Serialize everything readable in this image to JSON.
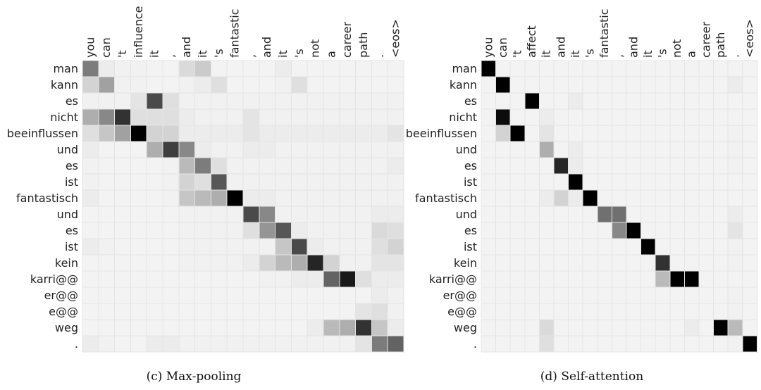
{
  "chart_data": [
    {
      "type": "heatmap",
      "title": "",
      "caption": "(c) Max-pooling",
      "x_labels": [
        "you",
        "can",
        "'t",
        "influence",
        "it",
        ",",
        "and",
        "it",
        "'s",
        "fantastic",
        ",",
        "and",
        "it",
        "'s",
        "not",
        "a",
        "career",
        "path",
        ".",
        "<eos>"
      ],
      "y_labels": [
        "man",
        "kann",
        "es",
        "nicht",
        "beeinflussen",
        "und",
        "es",
        "ist",
        "fantastisch",
        "und",
        "es",
        "ist",
        "kein",
        "karri@@",
        "er@@",
        "e@@",
        "weg",
        "."
      ],
      "value_range": [
        0,
        1
      ],
      "values": [
        [
          0.5,
          0.05,
          0.03,
          0.03,
          0.02,
          0.02,
          0.12,
          0.18,
          0.02,
          0.02,
          0.02,
          0.02,
          0.05,
          0.02,
          0.02,
          0.02,
          0.02,
          0.02,
          0.02,
          0.02
        ],
        [
          0.15,
          0.35,
          0.03,
          0.03,
          0.02,
          0.02,
          0.03,
          0.05,
          0.1,
          0.02,
          0.02,
          0.02,
          0.03,
          0.1,
          0.02,
          0.02,
          0.02,
          0.02,
          0.02,
          0.02
        ],
        [
          0.03,
          0.03,
          0.03,
          0.08,
          0.7,
          0.1,
          0.03,
          0.03,
          0.03,
          0.03,
          0.03,
          0.03,
          0.03,
          0.03,
          0.03,
          0.03,
          0.03,
          0.03,
          0.03,
          0.03
        ],
        [
          0.3,
          0.45,
          0.8,
          0.1,
          0.1,
          0.1,
          0.05,
          0.03,
          0.03,
          0.03,
          0.08,
          0.03,
          0.03,
          0.03,
          0.03,
          0.03,
          0.03,
          0.03,
          0.03,
          0.03
        ],
        [
          0.1,
          0.2,
          0.35,
          1.0,
          0.15,
          0.15,
          0.05,
          0.05,
          0.05,
          0.05,
          0.08,
          0.05,
          0.05,
          0.05,
          0.05,
          0.05,
          0.05,
          0.05,
          0.05,
          0.08
        ],
        [
          0.05,
          0.02,
          0.02,
          0.02,
          0.3,
          0.75,
          0.45,
          0.05,
          0.03,
          0.03,
          0.05,
          0.05,
          0.03,
          0.03,
          0.03,
          0.03,
          0.03,
          0.03,
          0.03,
          0.03
        ],
        [
          0.03,
          0.02,
          0.02,
          0.02,
          0.02,
          0.03,
          0.25,
          0.5,
          0.1,
          0.03,
          0.03,
          0.03,
          0.03,
          0.03,
          0.03,
          0.03,
          0.03,
          0.03,
          0.03,
          0.05
        ],
        [
          0.03,
          0.02,
          0.02,
          0.02,
          0.02,
          0.03,
          0.15,
          0.1,
          0.65,
          0.03,
          0.03,
          0.03,
          0.03,
          0.03,
          0.03,
          0.03,
          0.03,
          0.03,
          0.03,
          0.03
        ],
        [
          0.05,
          0.02,
          0.02,
          0.02,
          0.02,
          0.03,
          0.2,
          0.25,
          0.3,
          1.0,
          0.05,
          0.05,
          0.03,
          0.03,
          0.03,
          0.03,
          0.03,
          0.03,
          0.03,
          0.03
        ],
        [
          0.02,
          0.02,
          0.02,
          0.02,
          0.02,
          0.02,
          0.03,
          0.03,
          0.03,
          0.03,
          0.7,
          0.45,
          0.03,
          0.03,
          0.03,
          0.03,
          0.03,
          0.03,
          0.05,
          0.05
        ],
        [
          0.02,
          0.02,
          0.02,
          0.02,
          0.02,
          0.02,
          0.03,
          0.03,
          0.03,
          0.03,
          0.1,
          0.4,
          0.65,
          0.05,
          0.03,
          0.03,
          0.03,
          0.03,
          0.12,
          0.1
        ],
        [
          0.05,
          0.03,
          0.02,
          0.02,
          0.02,
          0.02,
          0.03,
          0.03,
          0.03,
          0.03,
          0.03,
          0.03,
          0.2,
          0.7,
          0.05,
          0.03,
          0.03,
          0.03,
          0.1,
          0.15
        ],
        [
          0.02,
          0.02,
          0.02,
          0.02,
          0.02,
          0.02,
          0.03,
          0.03,
          0.03,
          0.03,
          0.05,
          0.15,
          0.25,
          0.3,
          0.85,
          0.15,
          0.03,
          0.03,
          0.08,
          0.08
        ],
        [
          0.02,
          0.02,
          0.02,
          0.02,
          0.02,
          0.02,
          0.02,
          0.02,
          0.02,
          0.02,
          0.02,
          0.03,
          0.03,
          0.05,
          0.05,
          0.6,
          0.9,
          0.1,
          0.05,
          0.05
        ],
        [
          0.02,
          0.02,
          0.02,
          0.02,
          0.02,
          0.02,
          0.02,
          0.02,
          0.02,
          0.02,
          0.02,
          0.02,
          0.02,
          0.02,
          0.02,
          0.02,
          0.02,
          0.02,
          0.05,
          0.03
        ],
        [
          0.02,
          0.02,
          0.02,
          0.02,
          0.02,
          0.02,
          0.02,
          0.02,
          0.02,
          0.02,
          0.02,
          0.02,
          0.02,
          0.02,
          0.02,
          0.02,
          0.02,
          0.08,
          0.1,
          0.03
        ],
        [
          0.02,
          0.02,
          0.02,
          0.02,
          0.02,
          0.02,
          0.02,
          0.02,
          0.02,
          0.02,
          0.02,
          0.02,
          0.02,
          0.02,
          0.05,
          0.25,
          0.3,
          0.8,
          0.2,
          0.05
        ],
        [
          0.05,
          0.03,
          0.02,
          0.02,
          0.05,
          0.05,
          0.03,
          0.03,
          0.03,
          0.03,
          0.03,
          0.03,
          0.03,
          0.03,
          0.03,
          0.03,
          0.03,
          0.08,
          0.5,
          0.6
        ]
      ]
    },
    {
      "type": "heatmap",
      "title": "",
      "caption": "(d) Self-attention",
      "x_labels": [
        "you",
        "can",
        "'t",
        "affect",
        "it",
        "and",
        "it",
        "'s",
        "fantastic",
        ",",
        "and",
        "it",
        "'s",
        "not",
        "a",
        "career",
        "path",
        ".",
        "<eos>"
      ],
      "y_labels": [
        "man",
        "kann",
        "es",
        "nicht",
        "beeinflussen",
        "und",
        "es",
        "ist",
        "fantastisch",
        "und",
        "es",
        "ist",
        "kein",
        "karri@@",
        "er@@",
        "e@@",
        "weg",
        "."
      ],
      "value_range": [
        0,
        1
      ],
      "values": [
        [
          1.0,
          0.02,
          0.02,
          0.02,
          0.02,
          0.02,
          0.02,
          0.02,
          0.02,
          0.02,
          0.02,
          0.02,
          0.02,
          0.02,
          0.02,
          0.02,
          0.02,
          0.02,
          0.02
        ],
        [
          0.02,
          1.0,
          0.02,
          0.02,
          0.02,
          0.02,
          0.02,
          0.02,
          0.02,
          0.02,
          0.02,
          0.02,
          0.02,
          0.02,
          0.02,
          0.02,
          0.02,
          0.05,
          0.02
        ],
        [
          0.02,
          0.02,
          0.02,
          1.0,
          0.02,
          0.02,
          0.05,
          0.02,
          0.02,
          0.02,
          0.02,
          0.02,
          0.02,
          0.02,
          0.02,
          0.02,
          0.02,
          0.02,
          0.02
        ],
        [
          0.02,
          0.95,
          0.02,
          0.02,
          0.05,
          0.02,
          0.02,
          0.02,
          0.02,
          0.02,
          0.02,
          0.02,
          0.02,
          0.02,
          0.02,
          0.02,
          0.02,
          0.02,
          0.02
        ],
        [
          0.02,
          0.15,
          1.0,
          0.02,
          0.08,
          0.02,
          0.02,
          0.02,
          0.02,
          0.02,
          0.02,
          0.02,
          0.02,
          0.02,
          0.02,
          0.02,
          0.02,
          0.03,
          0.02
        ],
        [
          0.02,
          0.02,
          0.02,
          0.02,
          0.3,
          0.02,
          0.05,
          0.02,
          0.02,
          0.02,
          0.02,
          0.02,
          0.02,
          0.02,
          0.02,
          0.02,
          0.02,
          0.03,
          0.02
        ],
        [
          0.02,
          0.02,
          0.02,
          0.02,
          0.02,
          0.85,
          0.05,
          0.02,
          0.02,
          0.02,
          0.02,
          0.02,
          0.02,
          0.02,
          0.02,
          0.02,
          0.02,
          0.03,
          0.02
        ],
        [
          0.02,
          0.02,
          0.02,
          0.02,
          0.02,
          0.02,
          1.0,
          0.02,
          0.02,
          0.02,
          0.02,
          0.02,
          0.02,
          0.02,
          0.02,
          0.02,
          0.02,
          0.02,
          0.02
        ],
        [
          0.02,
          0.02,
          0.02,
          0.02,
          0.05,
          0.15,
          0.05,
          1.0,
          0.02,
          0.02,
          0.02,
          0.02,
          0.02,
          0.02,
          0.02,
          0.02,
          0.02,
          0.02,
          0.02
        ],
        [
          0.02,
          0.02,
          0.02,
          0.02,
          0.02,
          0.02,
          0.02,
          0.02,
          0.55,
          0.55,
          0.02,
          0.02,
          0.02,
          0.02,
          0.02,
          0.02,
          0.02,
          0.05,
          0.02
        ],
        [
          0.02,
          0.02,
          0.02,
          0.02,
          0.02,
          0.02,
          0.02,
          0.02,
          0.02,
          0.45,
          1.0,
          0.02,
          0.02,
          0.02,
          0.02,
          0.02,
          0.02,
          0.08,
          0.02
        ],
        [
          0.02,
          0.02,
          0.02,
          0.02,
          0.02,
          0.02,
          0.02,
          0.02,
          0.02,
          0.02,
          0.02,
          1.0,
          0.02,
          0.02,
          0.02,
          0.02,
          0.02,
          0.03,
          0.02
        ],
        [
          0.02,
          0.02,
          0.02,
          0.02,
          0.02,
          0.02,
          0.02,
          0.02,
          0.02,
          0.02,
          0.02,
          0.02,
          0.8,
          0.02,
          0.02,
          0.02,
          0.02,
          0.03,
          0.02
        ],
        [
          0.02,
          0.02,
          0.02,
          0.02,
          0.02,
          0.02,
          0.02,
          0.02,
          0.02,
          0.02,
          0.02,
          0.02,
          0.25,
          1.0,
          1.0,
          0.02,
          0.02,
          0.02,
          0.02
        ],
        [
          0.02,
          0.02,
          0.02,
          0.02,
          0.02,
          0.02,
          0.02,
          0.02,
          0.02,
          0.02,
          0.02,
          0.02,
          0.02,
          0.02,
          0.02,
          0.02,
          0.02,
          0.03,
          0.02
        ],
        [
          0.02,
          0.02,
          0.02,
          0.02,
          0.02,
          0.02,
          0.02,
          0.02,
          0.02,
          0.02,
          0.02,
          0.02,
          0.02,
          0.02,
          0.02,
          0.02,
          0.02,
          0.03,
          0.02
        ],
        [
          0.02,
          0.02,
          0.02,
          0.02,
          0.12,
          0.02,
          0.02,
          0.02,
          0.02,
          0.02,
          0.02,
          0.02,
          0.02,
          0.02,
          0.05,
          0.02,
          1.0,
          0.25,
          0.02
        ],
        [
          0.02,
          0.02,
          0.02,
          0.02,
          0.1,
          0.02,
          0.02,
          0.02,
          0.02,
          0.02,
          0.02,
          0.02,
          0.02,
          0.02,
          0.02,
          0.02,
          0.02,
          0.03,
          1.0
        ]
      ]
    }
  ]
}
